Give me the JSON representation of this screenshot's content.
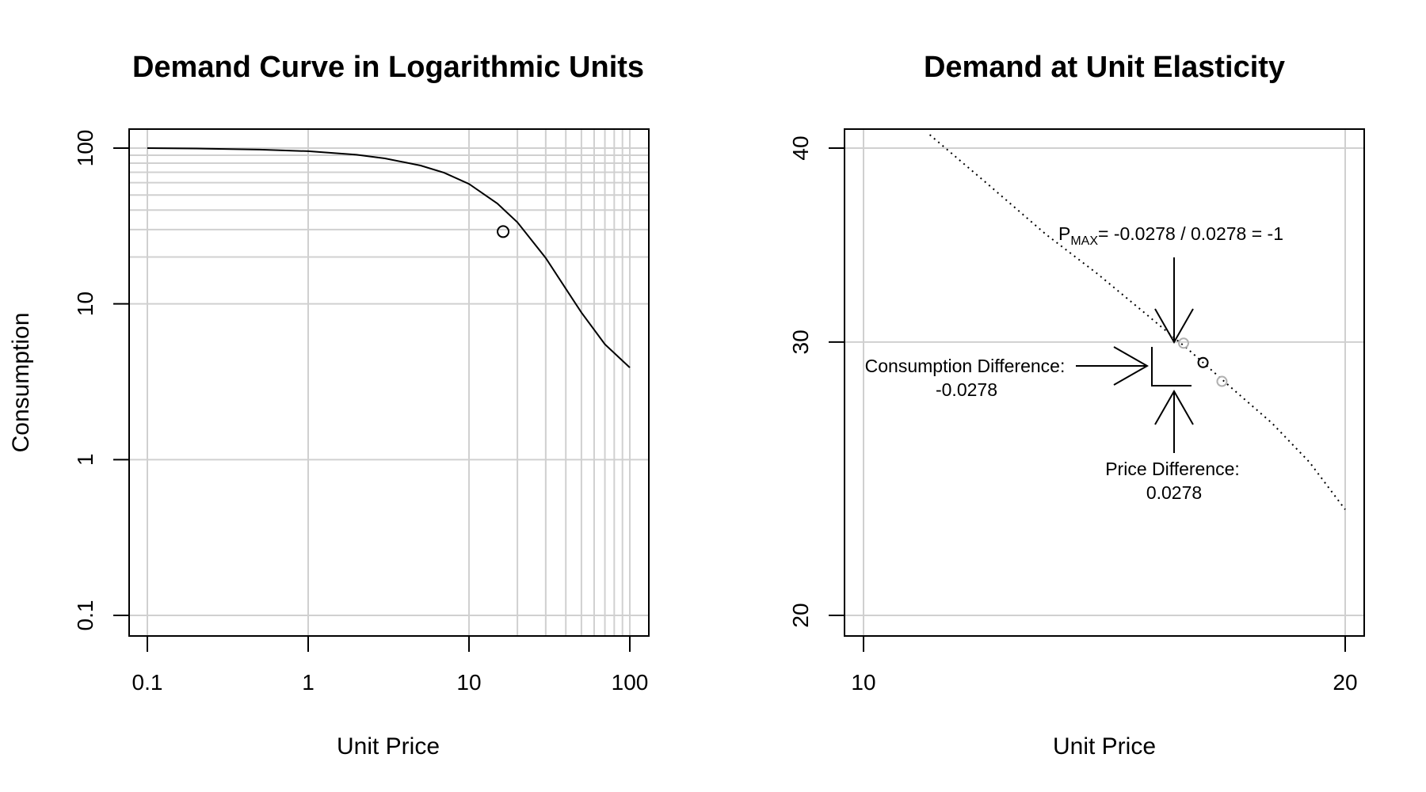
{
  "chart_data": [
    {
      "type": "line",
      "title": "Demand Curve in Logarithmic Units",
      "xlabel": "Unit Price",
      "ylabel": "Consumption",
      "x_scale": "log",
      "y_scale": "log",
      "xlim": [
        0.1,
        100
      ],
      "ylim": [
        0.1,
        100
      ],
      "x_ticks": [
        0.1,
        1,
        10,
        100
      ],
      "x_tick_labels": [
        "0.1",
        "1",
        "10",
        "100"
      ],
      "y_ticks": [
        0.1,
        1,
        10,
        100
      ],
      "y_tick_labels": [
        "0.1",
        "1",
        "10",
        "100"
      ],
      "grid": true,
      "grid_x": [
        10,
        20,
        30,
        40,
        50,
        60,
        70,
        80,
        90,
        100
      ],
      "grid_y": [
        10,
        20,
        30,
        40,
        50,
        60,
        70,
        80,
        90,
        100
      ],
      "series": [
        {
          "x": [
            0.1,
            0.2,
            0.5,
            1,
            2,
            3,
            5,
            7,
            10,
            15,
            20,
            30,
            40,
            50,
            70,
            100
          ],
          "y": [
            100,
            99.4,
            97.9,
            95.5,
            90.6,
            85.9,
            77.3,
            69.5,
            58.9,
            44.1,
            33.4,
            19.7,
            12.5,
            8.8,
            5.5,
            3.9
          ]
        }
      ],
      "marker": {
        "x": 16.3,
        "y": 29.1
      }
    },
    {
      "type": "line",
      "title": "Demand at Unit Elasticity",
      "xlabel": "Unit Price",
      "ylabel": "",
      "x_scale": "log",
      "y_scale": "log",
      "xlim": [
        10,
        20
      ],
      "ylim": [
        20,
        40
      ],
      "x_ticks": [
        10,
        20
      ],
      "x_tick_labels": [
        "10",
        "20"
      ],
      "y_ticks": [
        20,
        30,
        40
      ],
      "y_tick_labels": [
        "20",
        "30",
        "40"
      ],
      "grid": true,
      "series": [
        {
          "style": "dotted",
          "x": [
            11,
            12,
            13,
            14,
            15,
            16,
            17,
            18,
            19,
            20
          ],
          "y": [
            40.8,
            37.8,
            35.2,
            33.2,
            31.3,
            29.6,
            28.0,
            26.6,
            25.1,
            23.4
          ]
        }
      ],
      "marker": {
        "x": 16.3,
        "y": 29.1
      },
      "neighbor_points": [
        {
          "x": 15.85,
          "y": 29.95
        },
        {
          "x": 16.75,
          "y": 28.3
        }
      ],
      "annotations": {
        "pmax_label": {
          "p": "P",
          "sub": "MAX",
          "rest": "= -0.0278 / 0.0278 = -1"
        },
        "consumption_diff_line1": "Consumption Difference:",
        "consumption_diff_line2": "-0.0278",
        "price_diff_line1": "Price Difference:",
        "price_diff_line2": "0.0278"
      }
    }
  ]
}
